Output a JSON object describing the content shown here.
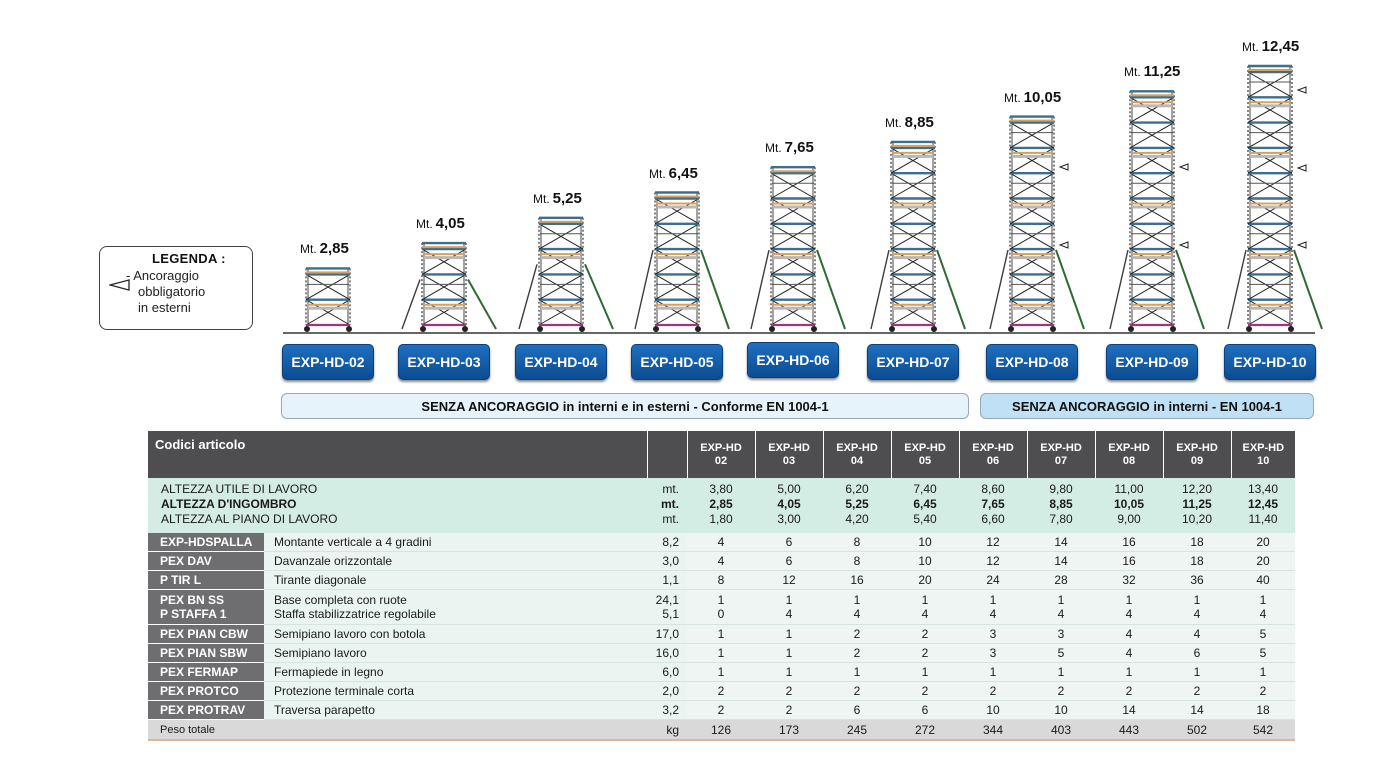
{
  "legend": {
    "title": "LEGENDA :",
    "text": [
      "- Ancoraggio",
      "obbligatorio",
      "in esterni"
    ],
    "symbol": "anchor-triangle-icon"
  },
  "height_prefix": "Mt.",
  "models": [
    {
      "code": "EXP-HD-02",
      "height": "2,85",
      "levels": 1
    },
    {
      "code": "EXP-HD-03",
      "height": "4,05",
      "levels": 2
    },
    {
      "code": "EXP-HD-04",
      "height": "5,25",
      "levels": 3
    },
    {
      "code": "EXP-HD-05",
      "height": "6,45",
      "levels": 4
    },
    {
      "code": "EXP-HD-06",
      "height": "7,65",
      "levels": 5
    },
    {
      "code": "EXP-HD-07",
      "height": "8,85",
      "levels": 6
    },
    {
      "code": "EXP-HD-08",
      "height": "10,05",
      "levels": 7
    },
    {
      "code": "EXP-HD-09",
      "height": "11,25",
      "levels": 8
    },
    {
      "code": "EXP-HD-10",
      "height": "12,45",
      "levels": 9
    }
  ],
  "banners": {
    "left": "SENZA ANCORAGGIO in interni e in esterni  - Conforme EN 1004-1",
    "right": "SENZA ANCORAGGIO in interni - EN 1004-1"
  },
  "colors": {
    "button": "#0b4c92",
    "header": "#4e4d4f",
    "code_cell": "#6e6d70",
    "height_band": "#d3ece4",
    "total_row": "#d9d9d9",
    "frame_orange": "#d8a060",
    "frame_blue": "#3d6e8c",
    "outrigger": "#2e6b33",
    "base_magenta": "#a0357f"
  },
  "table": {
    "header_title": "Codici articolo",
    "columns": [
      [
        "EXP-HD",
        "02"
      ],
      [
        "EXP-HD",
        "03"
      ],
      [
        "EXP-HD",
        "04"
      ],
      [
        "EXP-HD",
        "05"
      ],
      [
        "EXP-HD",
        "06"
      ],
      [
        "EXP-HD",
        "07"
      ],
      [
        "EXP-HD",
        "08"
      ],
      [
        "EXP-HD",
        "09"
      ],
      [
        "EXP-HD",
        "10"
      ]
    ],
    "height_rows": [
      {
        "label": "ALTEZZA UTILE DI LAVORO",
        "unit": "mt.",
        "bold": false,
        "values": [
          "3,80",
          "5,00",
          "6,20",
          "7,40",
          "8,60",
          "9,80",
          "11,00",
          "12,20",
          "13,40"
        ]
      },
      {
        "label": "ALTEZZA D'INGOMBRO",
        "unit": "mt.",
        "bold": true,
        "values": [
          "2,85",
          "4,05",
          "5,25",
          "6,45",
          "7,65",
          "8,85",
          "10,05",
          "11,25",
          "12,45"
        ]
      },
      {
        "label": "ALTEZZA AL PIANO DI LAVORO",
        "unit": "mt.",
        "bold": false,
        "values": [
          "1,80",
          "3,00",
          "4,20",
          "5,40",
          "6,60",
          "7,80",
          "9,00",
          "10,20",
          "11,40"
        ]
      }
    ],
    "component_rows": [
      {
        "codes": [
          "EXP-HDSPALLA"
        ],
        "descs": [
          "Montante verticale a 4 gradini"
        ],
        "weights": [
          "8,2"
        ],
        "values": [
          [
            "4"
          ],
          [
            "6"
          ],
          [
            "8"
          ],
          [
            "10"
          ],
          [
            "12"
          ],
          [
            "14"
          ],
          [
            "16"
          ],
          [
            "18"
          ],
          [
            "20"
          ]
        ]
      },
      {
        "codes": [
          "PEX DAV"
        ],
        "descs": [
          "Davanzale orizzontale"
        ],
        "weights": [
          "3,0"
        ],
        "values": [
          [
            "4"
          ],
          [
            "6"
          ],
          [
            "8"
          ],
          [
            "10"
          ],
          [
            "12"
          ],
          [
            "14"
          ],
          [
            "16"
          ],
          [
            "18"
          ],
          [
            "20"
          ]
        ]
      },
      {
        "codes": [
          "P TIR L"
        ],
        "descs": [
          "Tirante diagonale"
        ],
        "weights": [
          "1,1"
        ],
        "values": [
          [
            "8"
          ],
          [
            "12"
          ],
          [
            "16"
          ],
          [
            "20"
          ],
          [
            "24"
          ],
          [
            "28"
          ],
          [
            "32"
          ],
          [
            "36"
          ],
          [
            "40"
          ]
        ]
      },
      {
        "codes": [
          "PEX BN SS",
          "P STAFFA 1"
        ],
        "descs": [
          "Base completa con ruote",
          "Staffa stabilizzatrice regolabile"
        ],
        "weights": [
          "24,1",
          "5,1"
        ],
        "values": [
          [
            "1",
            "0"
          ],
          [
            "1",
            "4"
          ],
          [
            "1",
            "4"
          ],
          [
            "1",
            "4"
          ],
          [
            "1",
            "4"
          ],
          [
            "1",
            "4"
          ],
          [
            "1",
            "4"
          ],
          [
            "1",
            "4"
          ],
          [
            "1",
            "4"
          ]
        ]
      },
      {
        "codes": [
          "PEX PIAN CBW"
        ],
        "descs": [
          "Semipiano lavoro con botola"
        ],
        "weights": [
          "17,0"
        ],
        "values": [
          [
            "1"
          ],
          [
            "1"
          ],
          [
            "2"
          ],
          [
            "2"
          ],
          [
            "3"
          ],
          [
            "3"
          ],
          [
            "4"
          ],
          [
            "4"
          ],
          [
            "5"
          ]
        ]
      },
      {
        "codes": [
          "PEX PIAN SBW"
        ],
        "descs": [
          "Semipiano lavoro"
        ],
        "weights": [
          "16,0"
        ],
        "values": [
          [
            "1"
          ],
          [
            "1"
          ],
          [
            "2"
          ],
          [
            "2"
          ],
          [
            "3"
          ],
          [
            "5"
          ],
          [
            "4"
          ],
          [
            "6"
          ],
          [
            "5"
          ]
        ]
      },
      {
        "codes": [
          "PEX FERMAP"
        ],
        "descs": [
          "Fermapiede in legno"
        ],
        "weights": [
          "6,0"
        ],
        "values": [
          [
            "1"
          ],
          [
            "1"
          ],
          [
            "1"
          ],
          [
            "1"
          ],
          [
            "1"
          ],
          [
            "1"
          ],
          [
            "1"
          ],
          [
            "1"
          ],
          [
            "1"
          ]
        ]
      },
      {
        "codes": [
          "PEX PROTCO"
        ],
        "descs": [
          "Protezione terminale corta"
        ],
        "weights": [
          "2,0"
        ],
        "values": [
          [
            "2"
          ],
          [
            "2"
          ],
          [
            "2"
          ],
          [
            "2"
          ],
          [
            "2"
          ],
          [
            "2"
          ],
          [
            "2"
          ],
          [
            "2"
          ],
          [
            "2"
          ]
        ]
      },
      {
        "codes": [
          "PEX PROTRAV"
        ],
        "descs": [
          "Traversa parapetto"
        ],
        "weights": [
          "3,2"
        ],
        "values": [
          [
            "2"
          ],
          [
            "2"
          ],
          [
            "6"
          ],
          [
            "6"
          ],
          [
            "10"
          ],
          [
            "10"
          ],
          [
            "14"
          ],
          [
            "14"
          ],
          [
            "18"
          ]
        ]
      }
    ],
    "total_row": {
      "label": "Peso totale",
      "unit": "kg",
      "values": [
        "126",
        "173",
        "245",
        "272",
        "344",
        "403",
        "443",
        "502",
        "542"
      ]
    }
  }
}
